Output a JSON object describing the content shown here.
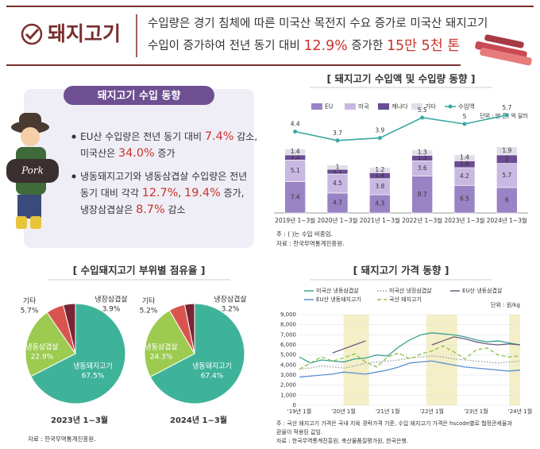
{
  "header": {
    "title": "돼지고기",
    "lines": [
      [
        {
          "text": "수입량은 경기 침체에 따른 미국산 목전지 수요 증가로 미국산 돼지고기",
          "em": false
        }
      ],
      [
        {
          "text": "수입이 증가하여 전년 동기 대비 ",
          "em": false
        },
        {
          "text": "12.9%",
          "em": true
        },
        {
          "text": " 증가한 ",
          "em": false
        },
        {
          "text": "15만 5천 톤",
          "em": true
        }
      ]
    ]
  },
  "summary": {
    "title": "돼지고기 수입 동향",
    "illustration_label": "Pork",
    "bullets": [
      [
        [
          {
            "text": "EU산 수입량은 전년 동기 대비 ",
            "em": false
          },
          {
            "text": "7.4%",
            "em": true
          },
          {
            "text": " 감소,",
            "em": false
          }
        ],
        [
          {
            "text": "미국산은 ",
            "em": false
          },
          {
            "text": "34.0%",
            "em": true
          },
          {
            "text": " 증가",
            "em": false
          }
        ]
      ],
      [
        [
          {
            "text": "냉동돼지고기와 냉동삼겹살 수입량은 전년",
            "em": false
          }
        ],
        [
          {
            "text": "동기 대비 각각 ",
            "em": false
          },
          {
            "text": "12.7%",
            "em": true
          },
          {
            "text": ", ",
            "em": false
          },
          {
            "text": "19.4%",
            "em": true
          },
          {
            "text": " 증가,",
            "em": false
          }
        ],
        [
          {
            "text": "냉장삼겹살은 ",
            "em": false
          },
          {
            "text": "8.7%",
            "em": true
          },
          {
            "text": " 감소",
            "em": false
          }
        ]
      ]
    ]
  },
  "chart_data": [
    {
      "type": "bar",
      "title": "[ 돼지고기 수입액 및 수입량 동향 ]",
      "unit": "단위 : 만 톤, 억 달러",
      "stacked": true,
      "categories": [
        "2019년 1~3월",
        "2020년 1~3월",
        "2021년 1~3월",
        "2022년 1~3월",
        "2023년 1~3월",
        "2024년 1~3월"
      ],
      "series": [
        {
          "name": "EU",
          "color": "#9a83c4",
          "values": [
            7.4,
            4.7,
            4.3,
            8.7,
            6.5,
            6.0
          ]
        },
        {
          "name": "미국",
          "color": "#c9b9e2",
          "values": [
            5.1,
            4.5,
            3.8,
            3.6,
            4.2,
            5.7
          ]
        },
        {
          "name": "캐나다",
          "color": "#6b4c94",
          "values": [
            1.2,
            1.1,
            1.4,
            1.3,
            1.6,
            2.0
          ]
        },
        {
          "name": "기타",
          "color": "#e2dee8",
          "values": [
            1.4,
            1.0,
            1.2,
            1.3,
            1.4,
            1.9
          ]
        },
        {
          "name": "수입액",
          "color": "#3aa7a3",
          "axis": "y2",
          "values": [
            4.4,
            3.7,
            3.9,
            5.5,
            5.0,
            5.7
          ]
        }
      ],
      "ylim": [
        0,
        24
      ],
      "y2lim": [
        -2,
        6
      ],
      "notes": [
        "주 : ( )는 수입 비중임.",
        "자료 : 한국무역통계진흥원."
      ]
    },
    {
      "type": "pie",
      "title": "[ 수입돼지고기 부위별 점유율 ]",
      "subtitle": "2023년 1~3월",
      "categories": [
        "냉동돼지고기",
        "냉동삼겹살",
        "기타",
        "냉장삼겹살"
      ],
      "values": [
        67.5,
        22.9,
        5.7,
        3.9
      ],
      "value_labels": [
        "67.5%",
        "22.9%",
        "5.7%",
        "3.9%"
      ],
      "colors": [
        "#3fb39a",
        "#9ccb50",
        "#d9544f",
        "#7b2436"
      ]
    },
    {
      "type": "pie",
      "subtitle": "2024년 1~3월",
      "categories": [
        "냉동돼지고기",
        "냉동삼겹살",
        "기타",
        "냉장삼겹살"
      ],
      "values": [
        67.4,
        24.3,
        5.2,
        3.2
      ],
      "value_labels": [
        "67.4%",
        "24.3%",
        "5.2%",
        "3.2%"
      ],
      "colors": [
        "#3fb39a",
        "#9ccb50",
        "#d9544f",
        "#7b2436"
      ],
      "source": "자료 : 한국무역통계진흥원."
    },
    {
      "type": "line",
      "title": "[ 돼지고기 가격 동향 ]",
      "unit": "단위 : 원/kg",
      "categories": [
        "'19년 1월",
        null,
        null,
        null,
        "'20년 1월",
        null,
        null,
        null,
        "'21년 1월",
        null,
        null,
        null,
        "'22년 1월",
        null,
        null,
        null,
        "'23년 1월",
        null,
        null,
        null,
        "'24년 1월"
      ],
      "series": [
        {
          "name": "미국산 냉동삼겹살",
          "color": "#3aa38f",
          "dash": "none",
          "values": [
            4800,
            4200,
            4500,
            4400,
            4300,
            4600,
            4700,
            5000,
            4900,
            5800,
            6500,
            7000,
            7200,
            7100,
            7000,
            6800,
            6500,
            6300,
            6400,
            6200,
            6000
          ]
        },
        {
          "name": "미국산 냉장삼겹살",
          "color": "#9a9a9a",
          "dash": "1.5,2",
          "values": [
            3600,
            3700,
            3900,
            3800,
            3700,
            3900,
            4200,
            4300,
            4400,
            4500,
            4700,
            4800,
            4900,
            4800,
            4600,
            4500,
            4400,
            4300,
            4200,
            4300,
            4400
          ]
        },
        {
          "name": "EU산 냉동삼겹살",
          "color": "#6b5b7b",
          "dash": "none",
          "values": [
            null,
            null,
            null,
            5200,
            5600,
            6000,
            6400,
            null,
            null,
            null,
            null,
            null,
            6000,
            6400,
            6800,
            6600,
            6300,
            6100,
            6000,
            6100,
            6000
          ]
        },
        {
          "name": "EU산 냉동돼지고기",
          "color": "#5b8fd1",
          "dash": "none",
          "values": [
            2800,
            2900,
            3000,
            3100,
            3300,
            3200,
            3100,
            3300,
            3500,
            3800,
            4200,
            4300,
            4400,
            4200,
            4000,
            3800,
            3700,
            3600,
            3500,
            3400,
            3500
          ]
        },
        {
          "name": "국산 돼지고기",
          "color": "#8cc152",
          "dash": "5,3",
          "values": [
            3600,
            4200,
            4800,
            4400,
            4700,
            5100,
            4300,
            3800,
            4800,
            5200,
            4600,
            5100,
            5400,
            5900,
            5300,
            4600,
            5500,
            5700,
            5000,
            4800,
            4900
          ]
        }
      ],
      "ylim": [
        0,
        9000
      ],
      "yticks": [
        0,
        {
          "value": 1000,
          "label": "1,000"
        },
        {
          "value": 2000,
          "label": "2,000"
        },
        {
          "value": 3000,
          "label": "3,000"
        },
        {
          "value": 4000,
          "label": "4,000"
        },
        {
          "value": 5000,
          "label": "5,000"
        },
        {
          "value": 6000,
          "label": "6,000"
        },
        {
          "value": 7000,
          "label": "7,000"
        },
        {
          "value": 8000,
          "label": "8,000"
        },
        {
          "value": 9000,
          "label": "9,000"
        }
      ],
      "grid": true,
      "notes": [
        "주 : 국산 돼지고기 가격은 국내 지육 경락가격 기준, 수입 돼지고기 가격은 hscode별로 협정관세율과",
        "환율이 적용된 값임.",
        "자료 : 한국무역통계진흥원, 축산물품질평가원, 한국은행."
      ]
    }
  ]
}
